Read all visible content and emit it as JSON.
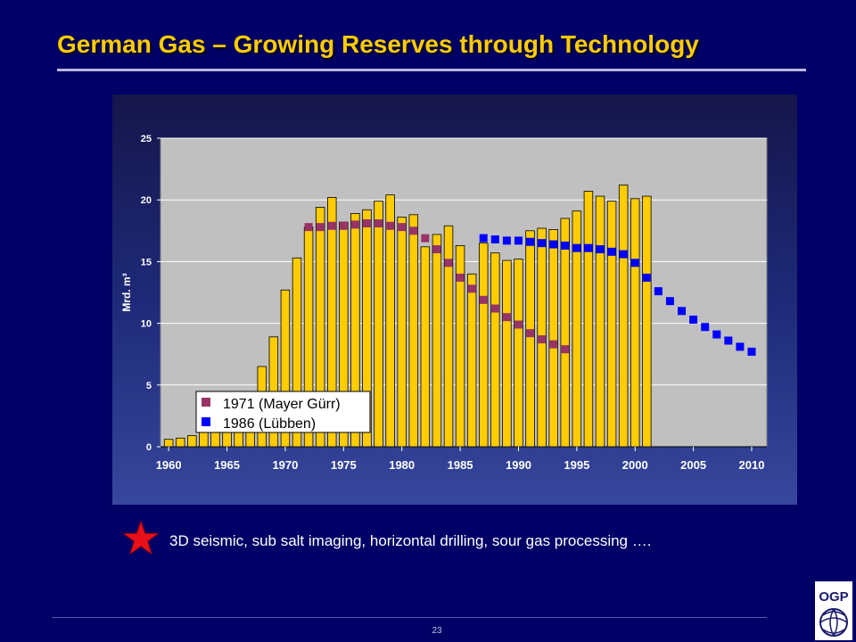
{
  "slide": {
    "title": "German Gas – Growing Reserves through Technology",
    "note": "3D seismic, sub salt imaging, horizontal drilling, sour gas processing ….",
    "page_number": "23",
    "logo_text": "OGP"
  },
  "chart_data": {
    "type": "bar",
    "title": "",
    "xlabel": "",
    "ylabel": "Mrd. m³",
    "xlim": [
      1960,
      2010
    ],
    "ylim": [
      0,
      25
    ],
    "yticks": [
      0,
      5,
      10,
      15,
      20,
      25
    ],
    "xticks": [
      1960,
      1965,
      1970,
      1975,
      1980,
      1985,
      1990,
      1995,
      2000,
      2005,
      2010
    ],
    "grid": true,
    "legend_position": "bottom-left",
    "colors": {
      "bars": "#FFCC00",
      "plot_bg": "#C0C0C0",
      "series_1971": "#993366",
      "series_1986": "#0000FF"
    },
    "bars": {
      "x": [
        1960,
        1961,
        1962,
        1963,
        1964,
        1965,
        1966,
        1967,
        1968,
        1969,
        1970,
        1971,
        1972,
        1973,
        1974,
        1975,
        1976,
        1977,
        1978,
        1979,
        1980,
        1981,
        1982,
        1983,
        1984,
        1985,
        1986,
        1987,
        1988,
        1989,
        1990,
        1991,
        1992,
        1993,
        1994,
        1995,
        1996,
        1997,
        1998,
        1999,
        2000,
        2001
      ],
      "values": [
        0.6,
        0.7,
        0.9,
        1.2,
        1.5,
        2.0,
        2.8,
        3.6,
        6.5,
        8.9,
        12.7,
        15.3,
        17.8,
        19.4,
        20.2,
        18.2,
        18.9,
        19.2,
        19.9,
        20.4,
        18.6,
        18.8,
        16.2,
        17.2,
        17.9,
        16.3,
        14.0,
        16.5,
        15.7,
        15.1,
        15.2,
        17.5,
        17.7,
        17.6,
        18.5,
        19.1,
        20.7,
        20.3,
        19.9,
        21.2,
        20.1,
        20.3
      ]
    },
    "series": [
      {
        "name": "1971 (Mayer Gürr)",
        "x": [
          1972,
          1973,
          1974,
          1975,
          1976,
          1977,
          1978,
          1979,
          1980,
          1981,
          1982,
          1983,
          1984,
          1985,
          1986,
          1987,
          1988,
          1989,
          1990,
          1991,
          1992,
          1993,
          1994
        ],
        "values": [
          17.8,
          17.8,
          17.9,
          17.9,
          18.0,
          18.1,
          18.1,
          17.9,
          17.8,
          17.5,
          16.9,
          16.0,
          14.9,
          13.7,
          12.8,
          11.9,
          11.2,
          10.5,
          9.9,
          9.2,
          8.7,
          8.3,
          7.9
        ]
      },
      {
        "name": "1986 (Lübben)",
        "x": [
          1987,
          1988,
          1989,
          1990,
          1991,
          1992,
          1993,
          1994,
          1995,
          1996,
          1997,
          1998,
          1999,
          2000,
          2001,
          2002,
          2003,
          2004,
          2005,
          2006,
          2007,
          2008,
          2009,
          2010
        ],
        "values": [
          16.9,
          16.8,
          16.7,
          16.7,
          16.6,
          16.5,
          16.4,
          16.3,
          16.1,
          16.1,
          16.0,
          15.8,
          15.6,
          14.9,
          13.7,
          12.6,
          11.8,
          11.0,
          10.3,
          9.7,
          9.1,
          8.6,
          8.1,
          7.7
        ]
      }
    ]
  }
}
